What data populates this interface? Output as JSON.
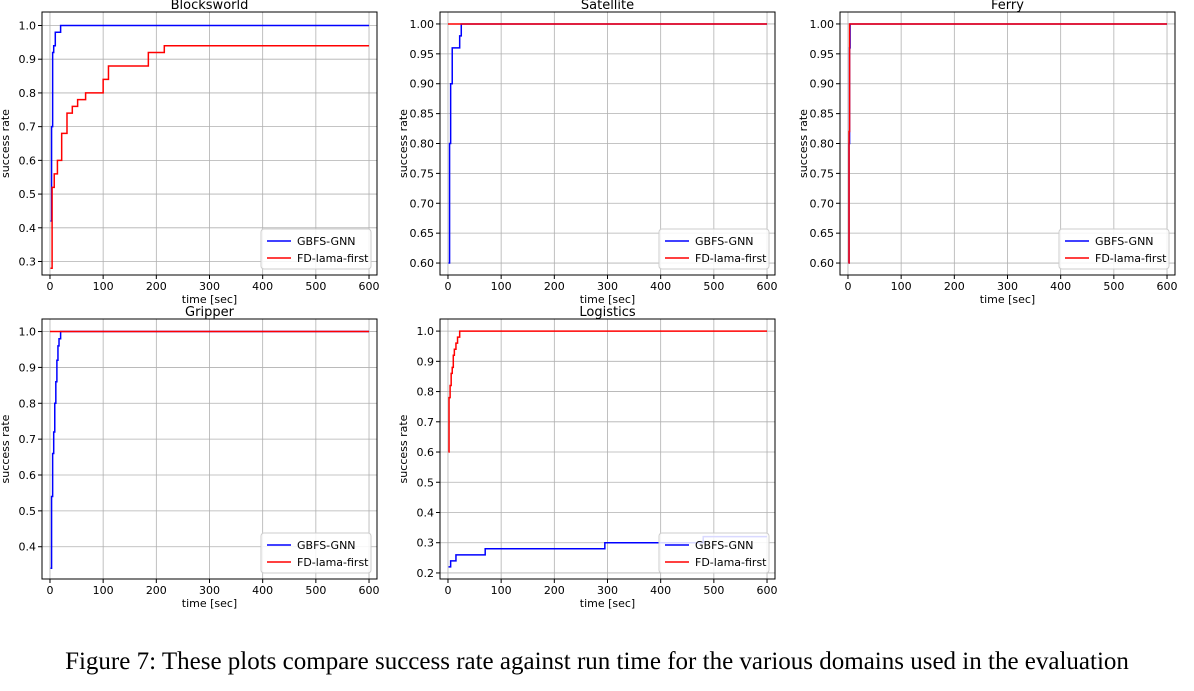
{
  "caption": "Figure 7: These plots compare success rate against run time for the various domains used in the evaluation",
  "colors": {
    "gbfs": "#0000ff",
    "fd": "#ff0000",
    "grid": "#b0b0b0"
  },
  "chart_data": [
    {
      "type": "line",
      "title": "Blocksworld",
      "xlabel": "time [sec]",
      "ylabel": "success rate",
      "xlim": [
        -15,
        615
      ],
      "ylim": [
        0.26,
        1.04
      ],
      "xticks": [
        0,
        100,
        200,
        300,
        400,
        500,
        600
      ],
      "yticks": [
        0.3,
        0.4,
        0.5,
        0.6,
        0.7,
        0.8,
        0.9,
        1.0
      ],
      "ytick_labels": [
        "0.3",
        "0.4",
        "0.5",
        "0.6",
        "0.7",
        "0.8",
        "0.9",
        "1.0"
      ],
      "grid": true,
      "legend": "lower-right",
      "series": [
        {
          "name": "GBFS-GNN",
          "color": "#0000ff",
          "step": true,
          "x": [
            1,
            3,
            5,
            7,
            10,
            20,
            600
          ],
          "y": [
            0.42,
            0.7,
            0.92,
            0.94,
            0.98,
            1.0,
            1.0
          ]
        },
        {
          "name": "FD-lama-first",
          "color": "#ff0000",
          "step": true,
          "x": [
            1,
            4,
            8,
            14,
            22,
            32,
            42,
            52,
            67,
            82,
            100,
            110,
            120,
            185,
            215,
            600
          ],
          "y": [
            0.28,
            0.52,
            0.56,
            0.6,
            0.68,
            0.74,
            0.76,
            0.78,
            0.8,
            0.8,
            0.84,
            0.88,
            0.88,
            0.92,
            0.94,
            0.94
          ]
        }
      ]
    },
    {
      "type": "line",
      "title": "Satellite",
      "xlabel": "time [sec]",
      "ylabel": "success rate",
      "xlim": [
        -15,
        615
      ],
      "ylim": [
        0.58,
        1.02
      ],
      "xticks": [
        0,
        100,
        200,
        300,
        400,
        500,
        600
      ],
      "yticks": [
        0.6,
        0.65,
        0.7,
        0.75,
        0.8,
        0.85,
        0.9,
        0.95,
        1.0
      ],
      "ytick_labels": [
        "0.60",
        "0.65",
        "0.70",
        "0.75",
        "0.80",
        "0.85",
        "0.90",
        "0.95",
        "1.00"
      ],
      "grid": true,
      "legend": "lower-right",
      "series": [
        {
          "name": "GBFS-GNN",
          "color": "#0000ff",
          "step": true,
          "x": [
            1,
            3,
            5,
            8,
            18,
            22,
            25,
            600
          ],
          "y": [
            0.6,
            0.8,
            0.9,
            0.96,
            0.96,
            0.98,
            1.0,
            1.0
          ]
        },
        {
          "name": "FD-lama-first",
          "color": "#ff0000",
          "step": true,
          "x": [
            0,
            600
          ],
          "y": [
            1.0,
            1.0
          ]
        }
      ]
    },
    {
      "type": "line",
      "title": "Ferry",
      "xlabel": "time [sec]",
      "ylabel": "success rate",
      "xlim": [
        -15,
        615
      ],
      "ylim": [
        0.58,
        1.02
      ],
      "xticks": [
        0,
        100,
        200,
        300,
        400,
        500,
        600
      ],
      "yticks": [
        0.6,
        0.65,
        0.7,
        0.75,
        0.8,
        0.85,
        0.9,
        0.95,
        1.0
      ],
      "ytick_labels": [
        "0.60",
        "0.65",
        "0.70",
        "0.75",
        "0.80",
        "0.85",
        "0.90",
        "0.95",
        "1.00"
      ],
      "grid": true,
      "legend": "lower-right",
      "series": [
        {
          "name": "GBFS-GNN",
          "color": "#0000ff",
          "step": true,
          "x": [
            1,
            2,
            3,
            4,
            600
          ],
          "y": [
            0.6,
            0.8,
            0.96,
            1.0,
            1.0
          ]
        },
        {
          "name": "FD-lama-first",
          "color": "#ff0000",
          "step": true,
          "x": [
            1,
            2,
            3,
            600
          ],
          "y": [
            0.6,
            0.82,
            1.0,
            1.0
          ]
        }
      ]
    },
    {
      "type": "line",
      "title": "Gripper",
      "xlabel": "time [sec]",
      "ylabel": "success rate",
      "xlim": [
        -15,
        615
      ],
      "ylim": [
        0.31,
        1.035
      ],
      "xticks": [
        0,
        100,
        200,
        300,
        400,
        500,
        600
      ],
      "yticks": [
        0.4,
        0.5,
        0.6,
        0.7,
        0.8,
        0.9,
        1.0
      ],
      "ytick_labels": [
        "0.4",
        "0.5",
        "0.6",
        "0.7",
        "0.8",
        "0.9",
        "1.0"
      ],
      "grid": true,
      "legend": "lower-right",
      "series": [
        {
          "name": "GBFS-GNN",
          "color": "#0000ff",
          "step": true,
          "x": [
            1,
            3,
            5,
            7,
            9,
            11,
            13,
            15,
            17,
            20,
            600
          ],
          "y": [
            0.34,
            0.54,
            0.66,
            0.72,
            0.8,
            0.86,
            0.92,
            0.96,
            0.98,
            1.0,
            1.0
          ]
        },
        {
          "name": "FD-lama-first",
          "color": "#ff0000",
          "step": true,
          "x": [
            0,
            600
          ],
          "y": [
            1.0,
            1.0
          ]
        }
      ]
    },
    {
      "type": "line",
      "title": "Logistics",
      "xlabel": "time [sec]",
      "ylabel": "success rate",
      "xlim": [
        -15,
        615
      ],
      "ylim": [
        0.18,
        1.04
      ],
      "xticks": [
        0,
        100,
        200,
        300,
        400,
        500,
        600
      ],
      "yticks": [
        0.2,
        0.3,
        0.4,
        0.5,
        0.6,
        0.7,
        0.8,
        0.9,
        1.0
      ],
      "ytick_labels": [
        "0.2",
        "0.3",
        "0.4",
        "0.5",
        "0.6",
        "0.7",
        "0.8",
        "0.9",
        "1.0"
      ],
      "grid": true,
      "legend": "lower-right",
      "series": [
        {
          "name": "GBFS-GNN",
          "color": "#0000ff",
          "step": true,
          "x": [
            1,
            5,
            15,
            70,
            295,
            480,
            600
          ],
          "y": [
            0.22,
            0.24,
            0.26,
            0.28,
            0.3,
            0.32,
            0.32
          ]
        },
        {
          "name": "FD-lama-first",
          "color": "#ff0000",
          "step": true,
          "x": [
            1,
            2,
            4,
            6,
            8,
            10,
            12,
            15,
            18,
            22,
            600
          ],
          "y": [
            0.6,
            0.78,
            0.82,
            0.86,
            0.88,
            0.92,
            0.94,
            0.96,
            0.98,
            1.0,
            1.0
          ]
        }
      ]
    }
  ]
}
